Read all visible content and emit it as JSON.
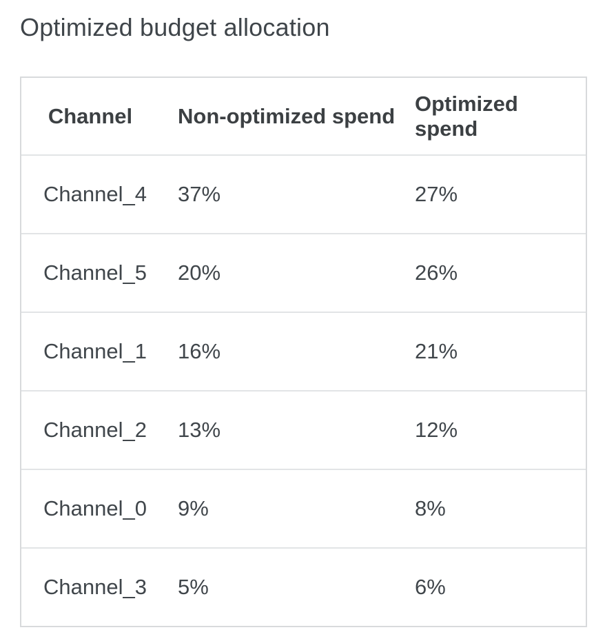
{
  "page": {
    "title": "Optimized budget allocation"
  },
  "table": {
    "columns": [
      {
        "label": "Channel"
      },
      {
        "label": "Non-optimized spend"
      },
      {
        "label": "Optimized spend"
      }
    ],
    "rows": [
      {
        "channel": "Channel_4",
        "non_optimized": "37%",
        "optimized": "27%"
      },
      {
        "channel": "Channel_5",
        "non_optimized": "20%",
        "optimized": "26%"
      },
      {
        "channel": "Channel_1",
        "non_optimized": "16%",
        "optimized": "21%"
      },
      {
        "channel": "Channel_2",
        "non_optimized": "13%",
        "optimized": "12%"
      },
      {
        "channel": "Channel_0",
        "non_optimized": "9%",
        "optimized": "8%"
      },
      {
        "channel": "Channel_3",
        "non_optimized": "5%",
        "optimized": "6%"
      }
    ]
  },
  "colors": {
    "text": "#3c4043",
    "title_text": "#3f454a",
    "outer_border": "#d8dadc",
    "row_divider": "#e2e4e6",
    "background": "#ffffff"
  },
  "chart_data": {
    "type": "table",
    "title": "Optimized budget allocation",
    "columns": [
      "Channel",
      "Non-optimized spend",
      "Optimized spend"
    ],
    "categories": [
      "Channel_4",
      "Channel_5",
      "Channel_1",
      "Channel_2",
      "Channel_0",
      "Channel_3"
    ],
    "series": [
      {
        "name": "Non-optimized spend",
        "values_pct": [
          37,
          20,
          16,
          13,
          9,
          5
        ]
      },
      {
        "name": "Optimized spend",
        "values_pct": [
          27,
          26,
          21,
          12,
          8,
          6
        ]
      }
    ],
    "rows": [
      [
        "Channel_4",
        "37%",
        "27%"
      ],
      [
        "Channel_5",
        "20%",
        "26%"
      ],
      [
        "Channel_1",
        "16%",
        "21%"
      ],
      [
        "Channel_2",
        "13%",
        "12%"
      ],
      [
        "Channel_0",
        "9%",
        "8%"
      ],
      [
        "Channel_3",
        "5%",
        "6%"
      ]
    ]
  }
}
